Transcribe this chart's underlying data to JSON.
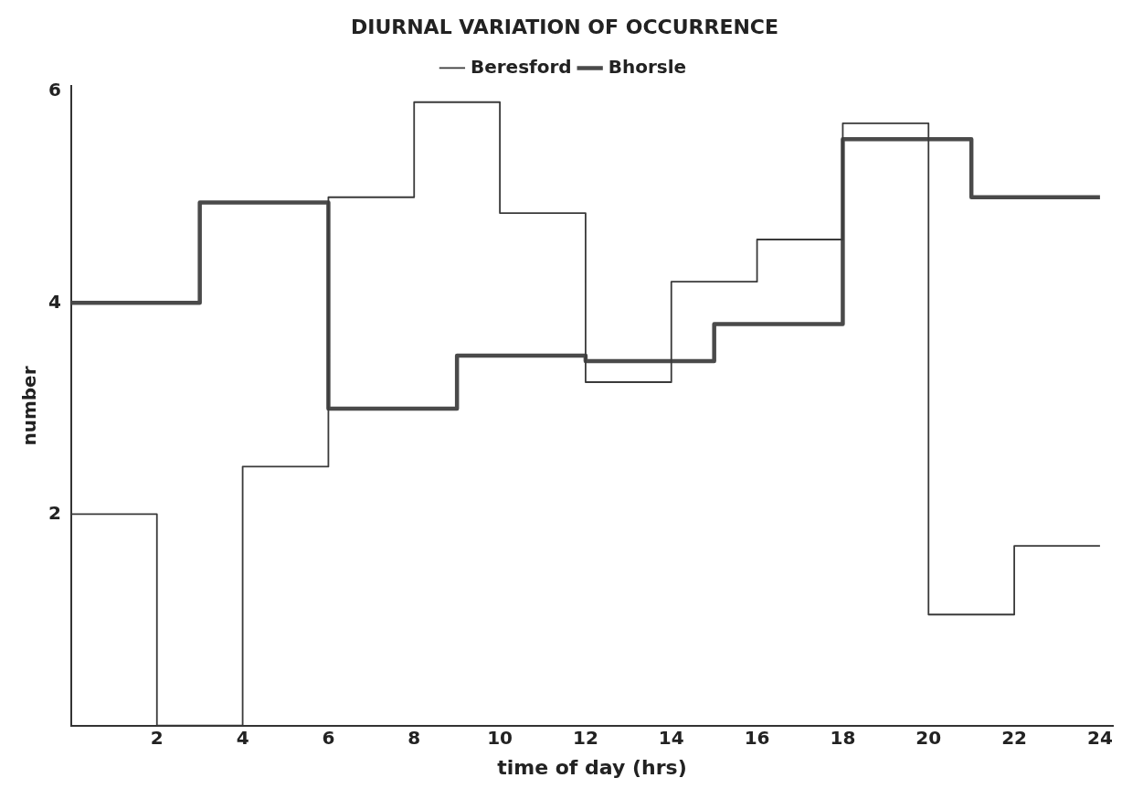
{
  "chart_data": {
    "type": "step",
    "title": "DIURNAL VARIATION OF OCCURRENCE",
    "xlabel": "time of day (hrs)",
    "ylabel": "number",
    "xlim": [
      0,
      24.3
    ],
    "xticks": [
      2,
      4,
      6,
      8,
      10,
      12,
      14,
      16,
      18,
      20,
      22,
      24
    ],
    "ylim": [
      0,
      6.05
    ],
    "yticks": [
      2,
      4,
      6
    ],
    "grid": false,
    "legend": "top",
    "series": [
      {
        "name": "Beresford",
        "color": "#3a3a3a",
        "line_style": "solid",
        "x": [
          0,
          2,
          4,
          6,
          8,
          10,
          12,
          14,
          16,
          18,
          20,
          22,
          24
        ],
        "values": [
          2,
          0,
          2.45,
          5.0,
          5.9,
          4.85,
          3.25,
          4.2,
          4.6,
          5.7,
          1.05,
          1.7,
          1.7
        ]
      },
      {
        "name": "Bhorsle",
        "color": "#4a4a4a",
        "x": [
          0,
          3,
          6,
          9,
          12,
          15,
          18,
          21,
          24
        ],
        "values": [
          4.0,
          4.95,
          3.0,
          3.5,
          3.45,
          3.8,
          5.55,
          5.0,
          5.0
        ]
      }
    ]
  }
}
